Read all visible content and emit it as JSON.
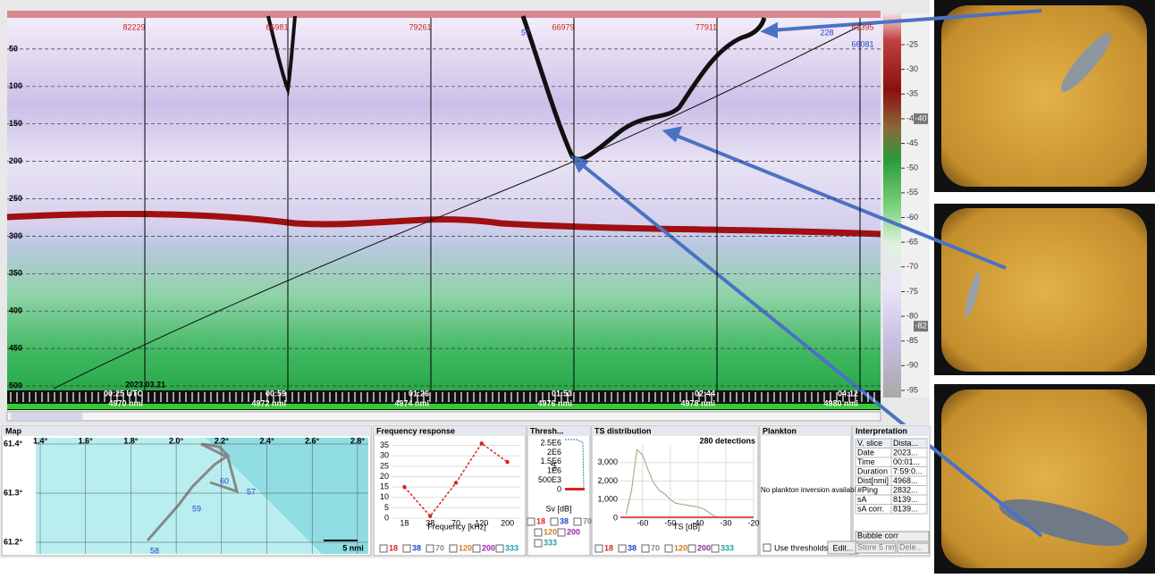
{
  "echogram": {
    "depth_ticks": [
      50,
      100,
      150,
      200,
      250,
      300,
      350,
      400,
      450,
      500
    ],
    "top_labels": [
      "82229",
      "66981",
      "79261",
      "66979",
      "77911",
      "57",
      "228",
      "61395",
      "66081"
    ],
    "date": "2023.03.21",
    "markers": [
      {
        "time": "00:25 UTC",
        "dist": "4970 nmi"
      },
      {
        "time": "00:59",
        "dist": "4972 nmi"
      },
      {
        "time": "01:26",
        "dist": "4974 nmi"
      },
      {
        "time": "01:53",
        "dist": "4976 nmi"
      },
      {
        "time": "02:44",
        "dist": "4978 nmi"
      },
      {
        "time": "04:12",
        "dist": "4980 nmi"
      }
    ]
  },
  "color_scale": {
    "ticks": [
      -25,
      -30,
      -35,
      -40,
      -45,
      -50,
      -55,
      -60,
      -65,
      -70,
      -75,
      -80,
      -85,
      -90,
      -95
    ],
    "upper": -40,
    "lower": -82
  },
  "map": {
    "title": "Map",
    "lon_labels": [
      "1.4°",
      "1.6°",
      "1.8°",
      "2.0°",
      "2.2°",
      "2.4°",
      "2.6°",
      "2.8°"
    ],
    "lat_labels": [
      "61.4°",
      "61.3°",
      "61.2°"
    ],
    "waypoints": [
      "60",
      "57",
      "59",
      "58"
    ],
    "scale": "5 nmi"
  },
  "frequency_response": {
    "title": "Frequency response",
    "x_label": "Frequency [kHz]",
    "categories": [
      "18",
      "38",
      "70",
      "120",
      "200"
    ],
    "values": [
      15,
      1,
      17,
      36,
      27
    ],
    "ylim": [
      0,
      37
    ],
    "yticks": [
      0,
      5,
      10,
      15,
      20,
      25,
      30,
      35
    ]
  },
  "threshold": {
    "title": "Thresh...",
    "y_label": "sA",
    "x_label": "Sv [dB]",
    "y_labels": [
      "2.5E6",
      "2E6",
      "1.5E6",
      "1E6",
      "500E3",
      "0"
    ]
  },
  "ts_distribution": {
    "title": "TS distribution",
    "detections": "280 detections",
    "x_label": "TS [dB]",
    "x": [
      -66,
      -64,
      -62,
      -60,
      -58,
      -56,
      -54,
      -52,
      -50,
      -48,
      -46,
      -44,
      -42,
      -40,
      -38,
      -36,
      -34,
      -32
    ],
    "values": [
      200,
      1500,
      3700,
      3400,
      2600,
      1900,
      1500,
      1300,
      1000,
      800,
      750,
      700,
      650,
      600,
      500,
      300,
      100,
      20
    ],
    "xlim": [
      -68,
      -20
    ],
    "ylim": [
      0,
      4000
    ],
    "xticks": [
      -60,
      -50,
      -40,
      -30,
      -20
    ],
    "yticks": [
      0,
      {
        "value": 1000,
        "label": "1,000"
      },
      {
        "value": 2000,
        "label": "2,000"
      },
      {
        "value": 3000,
        "label": "3,000"
      }
    ]
  },
  "plankton": {
    "title": "Plankton",
    "message": "No plankton inversion available",
    "checkbox": "Use thresholds",
    "button": "Edit..."
  },
  "interpretation": {
    "title": "Interpretation",
    "rows": [
      [
        "V. slice",
        "Dista..."
      ],
      [
        "Date",
        "2023..."
      ],
      [
        "Time",
        "00:01..."
      ],
      [
        "Duration",
        "7:59:0..."
      ],
      [
        "Dist[nmi]",
        "4968..."
      ],
      [
        "#Ping",
        "2832..."
      ],
      [
        "sA",
        "8139..."
      ],
      [
        "sA corr.",
        "8139..."
      ]
    ],
    "buttons": [
      "Bubble corr",
      "Store 5 nmi",
      "Dele..."
    ]
  },
  "channels": [
    "18",
    "38",
    "70",
    "120",
    "200",
    "333"
  ]
}
